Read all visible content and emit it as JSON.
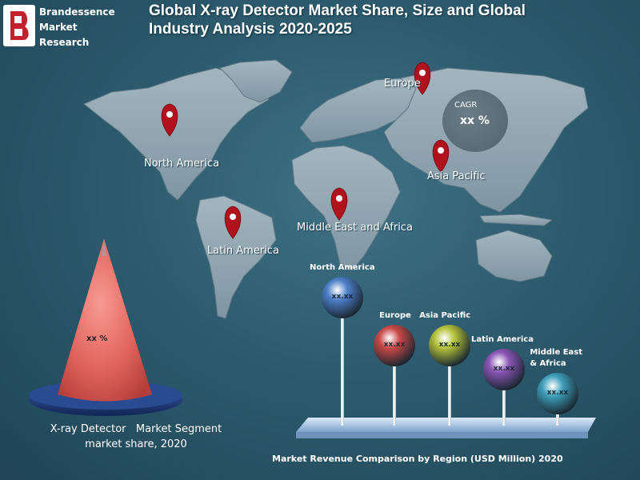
{
  "brand": {
    "line1": "Brandessence",
    "line2": "Market",
    "line3": "Research"
  },
  "title": {
    "line1": "Global X-ray Detector Market Share, Size and Global",
    "line2": "Industry Analysis 2020-2025"
  },
  "regions": {
    "north_america": "North America",
    "europe": "Europe",
    "asia_pacific": "Asia Pacific",
    "middle_east_africa": "Middle East and Africa",
    "latin_america": "Latin America"
  },
  "cagr": {
    "label": "CAGR",
    "value": "xx %"
  },
  "segment": {
    "value": "xx %",
    "caption_line1": "X-ray Detector   Market Segment",
    "caption_line2": "market share, 2020"
  },
  "footer": "Market Revenue Comparison by Region (USD Million) 2020",
  "colors": {
    "background": "#2d5b6e",
    "map_land": "#93a8b3",
    "pin": "#b0121e",
    "cone": "#e8706c",
    "cone_base": "#1f3c78",
    "platform": "#a9c7ea"
  },
  "chart_data": {
    "type": "lollipop",
    "title": "Market Revenue Comparison by Region (USD Million) 2020",
    "categories": [
      "North America",
      "Europe",
      "Asia Pacific",
      "Latin America",
      "Middle East & Africa"
    ],
    "category_labels": [
      [
        "North America"
      ],
      [
        "Europe"
      ],
      [
        "Asia Pacific"
      ],
      [
        "Latin America"
      ],
      [
        "Middle East",
        "& Africa"
      ]
    ],
    "value_labels": [
      "xx.xx",
      "xx.xx",
      "xx.xx",
      "xx.xx",
      "xx.xx"
    ],
    "relative_heights": [
      5,
      3,
      3,
      2,
      1
    ],
    "ball_colors": [
      "#4d7fc8",
      "#c94848",
      "#b4c23a",
      "#8a55b5",
      "#3f9fba"
    ]
  }
}
